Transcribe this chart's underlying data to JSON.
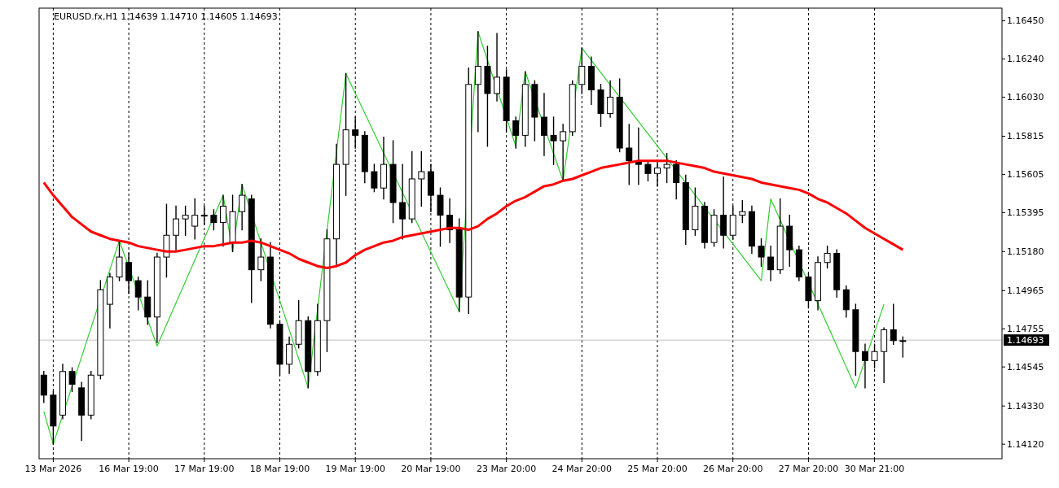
{
  "chart_data": {
    "type": "candlestick",
    "title": "EURUSD.fx,H1  1.14639 1.14710 1.14605 1.14693",
    "categories": [
      null,
      "13 Mar 2026",
      null,
      null,
      null,
      null,
      null,
      null,
      null,
      "16 Mar 19:00",
      null,
      null,
      null,
      null,
      null,
      null,
      null,
      "17 Mar 19:00",
      null,
      null,
      null,
      null,
      null,
      null,
      null,
      "18 Mar 19:00",
      null,
      null,
      null,
      null,
      null,
      null,
      null,
      "19 Mar 19:00",
      null,
      null,
      null,
      null,
      null,
      null,
      null,
      "20 Mar 19:00",
      null,
      null,
      null,
      null,
      null,
      null,
      null,
      "23 Mar 20:00",
      null,
      null,
      null,
      null,
      null,
      null,
      null,
      "24 Mar 20:00",
      null,
      null,
      null,
      null,
      null,
      null,
      null,
      "25 Mar 20:00",
      null,
      null,
      null,
      null,
      null,
      null,
      null,
      "26 Mar 20:00",
      null,
      null,
      null,
      null,
      null,
      null,
      null,
      "27 Mar 20:00",
      null,
      null,
      null,
      null,
      null,
      null,
      "30 Mar 21:00",
      null,
      null,
      null,
      null,
      null,
      null,
      null,
      null,
      null,
      null,
      null,
      null,
      null
    ],
    "ohlc": [
      [
        1.145,
        1.1452,
        1.1435,
        1.1439
      ],
      [
        1.1439,
        1.1441,
        1.1412,
        1.1422
      ],
      [
        1.1428,
        1.1456,
        1.1426,
        1.1452
      ],
      [
        1.1452,
        1.1454,
        1.1441,
        1.1445
      ],
      [
        1.1443,
        1.1446,
        1.1414,
        1.1428
      ],
      [
        1.1428,
        1.1452,
        1.1426,
        1.145
      ],
      [
        1.145,
        1.1502,
        1.1448,
        1.1497
      ],
      [
        1.1489,
        1.1506,
        1.1476,
        1.1504
      ],
      [
        1.1504,
        1.1524,
        1.1502,
        1.1515
      ],
      [
        1.1512,
        1.1517,
        1.1495,
        1.1502
      ],
      [
        1.1502,
        1.1504,
        1.1486,
        1.1493
      ],
      [
        1.1493,
        1.1502,
        1.1478,
        1.1482
      ],
      [
        1.1482,
        1.1517,
        1.1468,
        1.1515
      ],
      [
        1.1515,
        1.1544,
        1.1504,
        1.1527
      ],
      [
        1.1527,
        1.1543,
        1.1519,
        1.1536
      ],
      [
        1.1536,
        1.1543,
        1.1527,
        1.1538
      ],
      [
        1.1532,
        1.1547,
        1.1525,
        1.1538
      ],
      [
        1.1538,
        1.1543,
        1.1533,
        1.1538
      ],
      [
        1.1538,
        1.1541,
        1.153,
        1.1534
      ],
      [
        1.1534,
        1.1549,
        1.1521,
        1.1543
      ],
      [
        1.1523,
        1.1549,
        1.1518,
        1.154
      ],
      [
        1.154,
        1.1555,
        1.153,
        1.1549
      ],
      [
        1.1547,
        1.1549,
        1.149,
        1.1508
      ],
      [
        1.1508,
        1.1525,
        1.1502,
        1.1515
      ],
      [
        1.1515,
        1.1523,
        1.1476,
        1.1478
      ],
      [
        1.1478,
        1.148,
        1.145,
        1.1456
      ],
      [
        1.1456,
        1.1471,
        1.1451,
        1.1467
      ],
      [
        1.1467,
        1.1491,
        1.1465,
        1.148
      ],
      [
        1.148,
        1.1482,
        1.1443,
        1.1452
      ],
      [
        1.1452,
        1.1489,
        1.145,
        1.148
      ],
      [
        1.148,
        1.153,
        1.1463,
        1.1525
      ],
      [
        1.1525,
        1.1577,
        1.151,
        1.1566
      ],
      [
        1.1566,
        1.1616,
        1.1549,
        1.1585
      ],
      [
        1.1585,
        1.1592,
        1.1575,
        1.1582
      ],
      [
        1.1582,
        1.1584,
        1.1556,
        1.1562
      ],
      [
        1.1562,
        1.1566,
        1.1551,
        1.1553
      ],
      [
        1.1553,
        1.1581,
        1.1547,
        1.1566
      ],
      [
        1.1566,
        1.1579,
        1.1534,
        1.1545
      ],
      [
        1.1545,
        1.1566,
        1.1525,
        1.1536
      ],
      [
        1.1536,
        1.1573,
        1.1534,
        1.1558
      ],
      [
        1.1558,
        1.1573,
        1.1543,
        1.1562
      ],
      [
        1.1562,
        1.1566,
        1.154,
        1.1549
      ],
      [
        1.1549,
        1.1553,
        1.1521,
        1.1538
      ],
      [
        1.1538,
        1.1547,
        1.1523,
        1.153
      ],
      [
        1.153,
        1.1536,
        1.1485,
        1.1493
      ],
      [
        1.1493,
        1.1619,
        1.1484,
        1.161
      ],
      [
        1.161,
        1.1639,
        1.1584,
        1.162
      ],
      [
        1.162,
        1.1631,
        1.1576,
        1.1605
      ],
      [
        1.1605,
        1.1638,
        1.1601,
        1.1614
      ],
      [
        1.1614,
        1.1618,
        1.1584,
        1.159
      ],
      [
        1.159,
        1.1592,
        1.1575,
        1.1582
      ],
      [
        1.1582,
        1.1617,
        1.1576,
        1.161
      ],
      [
        1.161,
        1.1612,
        1.1579,
        1.1592
      ],
      [
        1.1592,
        1.1605,
        1.1571,
        1.1582
      ],
      [
        1.1582,
        1.1592,
        1.1566,
        1.1579
      ],
      [
        1.1579,
        1.1588,
        1.1557,
        1.1584
      ],
      [
        1.1584,
        1.1612,
        1.1582,
        1.161
      ],
      [
        1.161,
        1.163,
        1.1605,
        1.162
      ],
      [
        1.162,
        1.1625,
        1.1599,
        1.1607
      ],
      [
        1.1607,
        1.161,
        1.1587,
        1.1594
      ],
      [
        1.1594,
        1.1612,
        1.1592,
        1.1603
      ],
      [
        1.1603,
        1.1613,
        1.1573,
        1.1575
      ],
      [
        1.1575,
        1.1588,
        1.1555,
        1.1568
      ],
      [
        1.1568,
        1.1586,
        1.1555,
        1.1566
      ],
      [
        1.1566,
        1.1568,
        1.1557,
        1.1561
      ],
      [
        1.1561,
        1.1568,
        1.1554,
        1.1564
      ],
      [
        1.1564,
        1.1572,
        1.1556,
        1.1566
      ],
      [
        1.1566,
        1.1568,
        1.1547,
        1.1556
      ],
      [
        1.1556,
        1.156,
        1.1522,
        1.153
      ],
      [
        1.153,
        1.1553,
        1.1527,
        1.1543
      ],
      [
        1.1543,
        1.1545,
        1.152,
        1.1523
      ],
      [
        1.1523,
        1.1541,
        1.1521,
        1.1538
      ],
      [
        1.1538,
        1.1559,
        1.152,
        1.1527
      ],
      [
        1.1527,
        1.1543,
        1.1525,
        1.1538
      ],
      [
        1.1538,
        1.1546,
        1.1534,
        1.154
      ],
      [
        1.154,
        1.1543,
        1.1517,
        1.1521
      ],
      [
        1.1521,
        1.1525,
        1.151,
        1.1515
      ],
      [
        1.1515,
        1.1521,
        1.1502,
        1.1508
      ],
      [
        1.1508,
        1.1547,
        1.1506,
        1.1532
      ],
      [
        1.1532,
        1.1538,
        1.151,
        1.1519
      ],
      [
        1.1519,
        1.1521,
        1.1502,
        1.1504
      ],
      [
        1.1504,
        1.1506,
        1.1487,
        1.1491
      ],
      [
        1.1491,
        1.1515,
        1.1486,
        1.1512
      ],
      [
        1.1512,
        1.1521,
        1.1509,
        1.1517
      ],
      [
        1.1517,
        1.1519,
        1.1493,
        1.1497
      ],
      [
        1.1497,
        1.1499,
        1.1482,
        1.1486
      ],
      [
        1.1486,
        1.1489,
        1.145,
        1.1463
      ],
      [
        1.1463,
        1.1467,
        1.1443,
        1.1458
      ],
      [
        1.1458,
        1.1467,
        1.1454,
        1.1463
      ],
      [
        1.1463,
        1.1476,
        1.1446,
        1.1475
      ],
      [
        1.1475,
        1.1489,
        1.1467,
        1.1469
      ],
      [
        1.1469,
        1.1471,
        1.146,
        1.1469
      ],
      null,
      null,
      null,
      null,
      null,
      null,
      null,
      null,
      null,
      null
    ],
    "series": [
      {
        "type": "line",
        "color": "#ff0000",
        "values": [
          1.1556,
          1.1549,
          1.1543,
          1.1537,
          1.1533,
          1.1529,
          1.1527,
          1.1525,
          1.1524,
          1.1523,
          1.1521,
          1.152,
          1.1519,
          1.1518,
          1.1518,
          1.1519,
          1.152,
          1.1521,
          1.1521,
          1.1522,
          1.1523,
          1.1523,
          1.1524,
          1.1523,
          1.1521,
          1.1519,
          1.1517,
          1.1514,
          1.1512,
          1.151,
          1.1509,
          1.151,
          1.1512,
          1.1516,
          1.1519,
          1.1521,
          1.1523,
          1.1524,
          1.1526,
          1.1527,
          1.1528,
          1.1529,
          1.153,
          1.1531,
          1.1531,
          1.153,
          1.1532,
          1.1536,
          1.1539,
          1.1543,
          1.1546,
          1.1548,
          1.1551,
          1.1554,
          1.1555,
          1.1557,
          1.1558,
          1.156,
          1.1562,
          1.1564,
          1.1565,
          1.1566,
          1.1567,
          1.1568,
          1.1568,
          1.1568,
          1.1568,
          1.1567,
          1.1566,
          1.1565,
          1.1564,
          1.1562,
          1.1561,
          1.156,
          1.1559,
          1.1558,
          1.1556,
          1.1555,
          1.1554,
          1.1553,
          1.1552,
          1.155,
          1.1547,
          1.1545,
          1.1542,
          1.1539,
          1.1535,
          1.1531,
          1.1528,
          1.1525,
          1.1522,
          1.1519,
          null,
          null,
          null,
          null,
          null,
          null,
          null,
          null,
          null,
          null
        ]
      },
      {
        "type": "line",
        "color": "#32cd32",
        "values": [
          1.143,
          1.1412,
          null,
          null,
          null,
          null,
          null,
          null,
          1.1524,
          null,
          null,
          null,
          1.1466,
          null,
          null,
          null,
          null,
          null,
          null,
          1.1549,
          1.1518,
          1.1555,
          null,
          null,
          null,
          null,
          null,
          null,
          1.1443,
          null,
          null,
          null,
          1.1616,
          null,
          null,
          null,
          null,
          null,
          null,
          null,
          null,
          null,
          null,
          null,
          1.1485,
          null,
          1.1639,
          null,
          null,
          null,
          1.1576,
          1.1617,
          null,
          null,
          null,
          1.1557,
          null,
          1.163,
          null,
          null,
          null,
          null,
          null,
          null,
          null,
          null,
          null,
          null,
          null,
          null,
          null,
          null,
          null,
          null,
          null,
          null,
          1.1502,
          1.1547,
          null,
          null,
          null,
          null,
          null,
          null,
          null,
          null,
          1.1443,
          null,
          null,
          1.1489,
          null,
          null,
          null,
          null,
          null,
          null,
          null,
          null,
          null,
          null,
          null,
          null
        ]
      }
    ],
    "ylim": [
      1.1404,
      1.1652
    ],
    "yticks": [
      {
        "value": 1.1412,
        "label": "1.14120"
      },
      {
        "value": 1.1433,
        "label": "1.14330"
      },
      {
        "value": 1.14545,
        "label": "1.14545"
      },
      {
        "value": 1.14755,
        "label": "1.14755"
      },
      {
        "value": 1.14965,
        "label": "1.14965"
      },
      {
        "value": 1.1518,
        "label": "1.15180"
      },
      {
        "value": 1.15395,
        "label": "1.15395"
      },
      {
        "value": 1.15605,
        "label": "1.15605"
      },
      {
        "value": 1.15815,
        "label": "1.15815"
      },
      {
        "value": 1.1603,
        "label": "1.16030"
      },
      {
        "value": 1.1624,
        "label": "1.16240"
      },
      {
        "value": 1.1645,
        "label": "1.16450"
      }
    ],
    "ref_lines": [
      {
        "axis": "y",
        "value": 1.14693,
        "label": "1.14693",
        "color": "#c0c0c0"
      }
    ],
    "grid": "x"
  }
}
